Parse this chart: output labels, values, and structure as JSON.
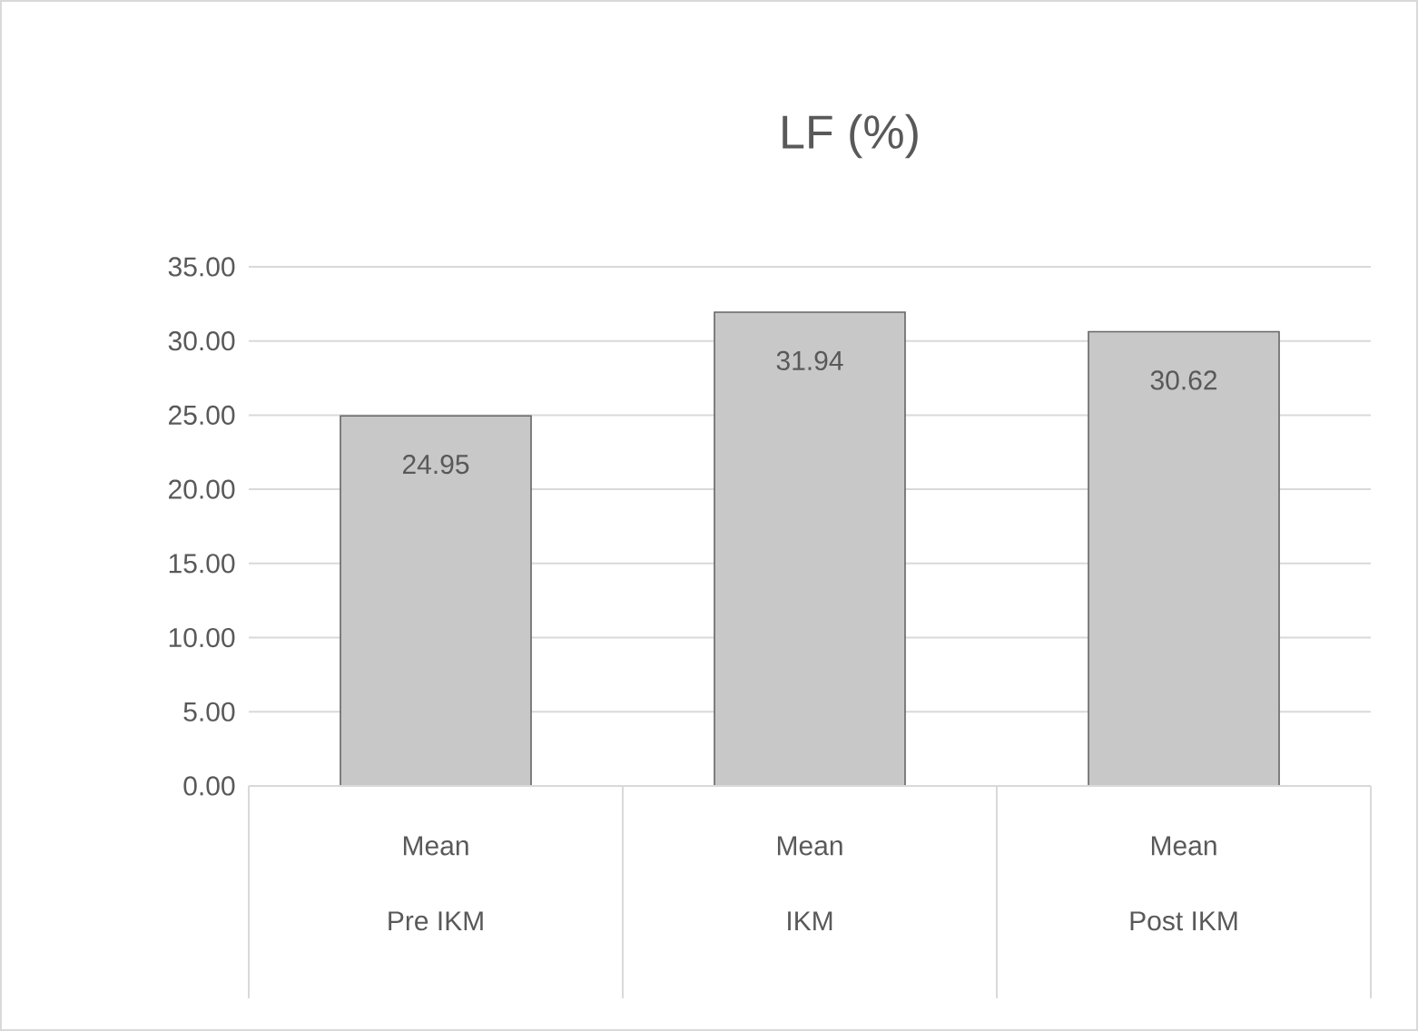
{
  "chart_data": {
    "type": "bar",
    "title": "LF (%)",
    "categories": [
      "Pre IKM",
      "IKM",
      "Post IKM"
    ],
    "values": [
      24.95,
      31.94,
      30.62
    ],
    "color": "#c8c8c8",
    "ylim": [
      0,
      35
    ],
    "yticks": [
      {
        "value": 0,
        "label": "0.00"
      },
      {
        "value": 5,
        "label": "5.00"
      },
      {
        "value": 10,
        "label": "10.00"
      },
      {
        "value": 15,
        "label": "15.00"
      },
      {
        "value": 20,
        "label": "20.00"
      },
      {
        "value": 25,
        "label": "25.00"
      },
      {
        "value": 30,
        "label": "30.00"
      },
      {
        "value": 35,
        "label": "35.00"
      }
    ],
    "grid": "y",
    "data_labels": true,
    "annotations": [
      "Mean",
      "Mean",
      "Mean"
    ]
  }
}
